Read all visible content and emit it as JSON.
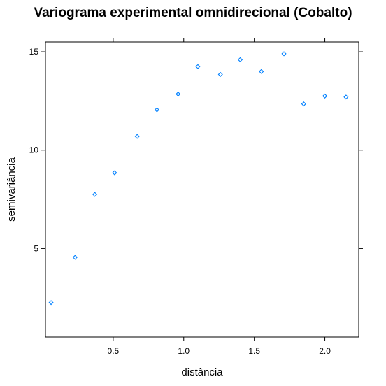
{
  "chart_data": {
    "type": "scatter",
    "title": "Variograma experimental omnidirecional (Cobalto)",
    "xlabel": "distância",
    "ylabel": "semivariância",
    "xlim": [
      0.02,
      2.24
    ],
    "ylim": [
      0.5,
      15.5
    ],
    "xticks": [
      0.5,
      1.0,
      1.5,
      2.0
    ],
    "xtick_labels": [
      "0.5",
      "1.0",
      "1.5",
      "2.0"
    ],
    "yticks": [
      5,
      10,
      15
    ],
    "ytick_labels": [
      "5",
      "10",
      "15"
    ],
    "grid": false,
    "legend": "none",
    "marker": "diamond",
    "color": "#0080FF",
    "x": [
      0.06,
      0.23,
      0.37,
      0.51,
      0.67,
      0.81,
      0.96,
      1.1,
      1.26,
      1.4,
      1.55,
      1.71,
      1.85,
      2.0,
      2.15
    ],
    "y": [
      2.25,
      4.55,
      7.75,
      8.85,
      10.7,
      12.05,
      12.85,
      14.25,
      13.85,
      14.6,
      14.0,
      14.9,
      12.35,
      12.75,
      12.7
    ]
  }
}
